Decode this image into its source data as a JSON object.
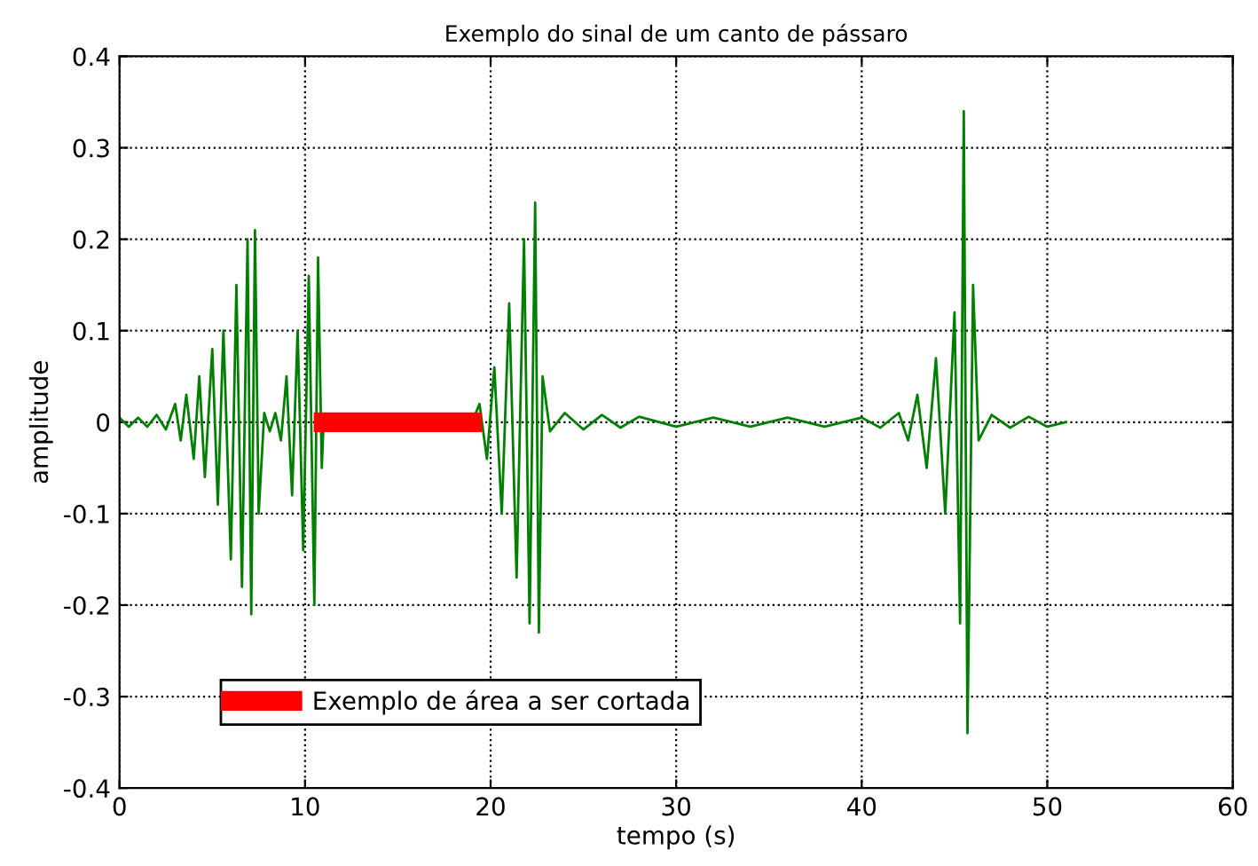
{
  "chart_data": {
    "type": "line",
    "title": "Exemplo do sinal de um canto de pássaro",
    "xlabel": "tempo (s)",
    "ylabel": "amplitude",
    "xlim": [
      0,
      60
    ],
    "xticks": [
      0,
      10,
      20,
      30,
      40,
      50,
      60
    ],
    "ylim": [
      -0.4,
      0.4
    ],
    "yticks": [
      -0.4,
      -0.3,
      -0.2,
      -0.1,
      0,
      0.1,
      0.2,
      0.3,
      0.4
    ],
    "grid": true,
    "legend": "bottom left",
    "series": [
      {
        "color": "#007f00",
        "x": [
          0,
          0.5,
          1,
          1.5,
          2,
          2.5,
          3,
          3.3,
          3.6,
          4,
          4.3,
          4.6,
          5,
          5.3,
          5.6,
          6,
          6.3,
          6.6,
          6.9,
          7.1,
          7.3,
          7.5,
          7.8,
          8.1,
          8.4,
          8.7,
          9,
          9.3,
          9.6,
          9.9,
          10.2,
          10.5,
          10.7,
          10.9,
          11
        ],
        "values": [
          0.005,
          -0.005,
          0.005,
          -0.005,
          0.008,
          -0.008,
          0.02,
          -0.02,
          0.03,
          -0.04,
          0.05,
          -0.06,
          0.08,
          -0.09,
          0.1,
          -0.15,
          0.15,
          -0.18,
          0.2,
          -0.21,
          0.21,
          -0.1,
          0.01,
          -0.01,
          0.01,
          -0.02,
          0.05,
          -0.08,
          0.1,
          -0.14,
          0.16,
          -0.2,
          0.18,
          -0.05,
          0.0
        ]
      },
      {
        "color": "#007f00",
        "x": [
          19,
          19.4,
          19.8,
          20.2,
          20.6,
          21,
          21.4,
          21.8,
          22.1,
          22.4,
          22.6,
          22.8,
          23.2,
          24,
          25,
          26,
          27,
          28,
          30,
          32,
          34,
          36,
          38,
          40,
          41,
          42,
          42.5,
          43,
          43.5,
          44,
          44.5,
          45,
          45.3,
          45.5,
          45.7,
          46,
          46.3,
          47,
          48,
          49,
          50,
          51
        ],
        "values": [
          0.0,
          0.02,
          -0.04,
          0.06,
          -0.1,
          0.13,
          -0.17,
          0.2,
          -0.22,
          0.24,
          -0.23,
          0.05,
          -0.01,
          0.01,
          -0.008,
          0.008,
          -0.006,
          0.006,
          -0.005,
          0.005,
          -0.005,
          0.005,
          -0.005,
          0.005,
          -0.006,
          0.01,
          -0.02,
          0.03,
          -0.05,
          0.07,
          -0.1,
          0.12,
          -0.22,
          0.34,
          -0.34,
          0.15,
          -0.02,
          0.008,
          -0.006,
          0.006,
          -0.005,
          0.0
        ]
      },
      {
        "name": "Exemplo de área a ser cortada",
        "color": "#ff0000",
        "x": [
          11,
          19
        ],
        "values": [
          0,
          0
        ]
      }
    ]
  }
}
